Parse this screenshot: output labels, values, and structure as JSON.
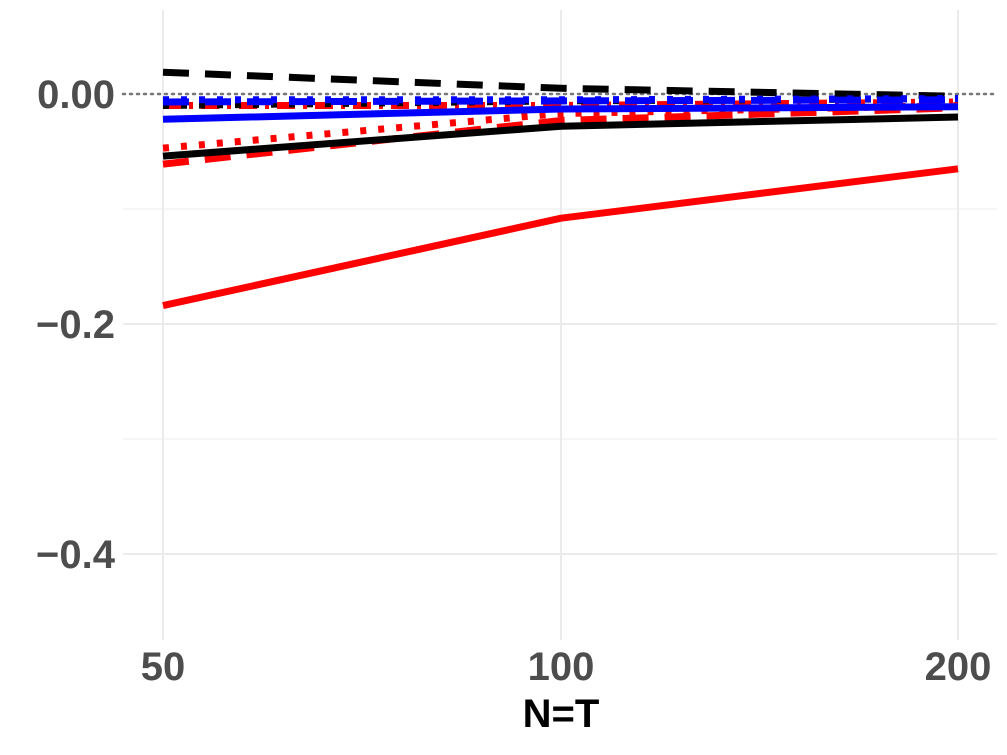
{
  "chart_data": {
    "type": "line",
    "title": "",
    "xlabel": "N=T",
    "ylabel": "",
    "x": [
      50,
      100,
      200
    ],
    "x_tick_labels": [
      "50",
      "100",
      "200"
    ],
    "y_ticks": [
      0.0,
      -0.2,
      -0.4
    ],
    "y_tick_labels": [
      "0.00",
      "−0.2",
      "−0.4"
    ],
    "xlim": [
      50,
      200
    ],
    "ylim": [
      -0.47,
      0.075
    ],
    "x_scale": "ordinal-equal-spacing",
    "grid": true,
    "reference_line": {
      "y": 0,
      "style": "dotted",
      "color": "#777777"
    },
    "series": [
      {
        "color": "#ff0000",
        "dash": "solid",
        "values": [
          -0.184,
          -0.108,
          -0.065
        ]
      },
      {
        "color": "#ff0000",
        "dash": "dashed",
        "values": [
          -0.061,
          -0.023,
          -0.012
        ]
      },
      {
        "color": "#ff0000",
        "dash": "dotted",
        "values": [
          -0.047,
          -0.017,
          -0.01
        ]
      },
      {
        "color": "#ff0000",
        "dash": "dotdash",
        "values": [
          -0.01,
          -0.01,
          -0.007
        ]
      },
      {
        "color": "#000000",
        "dash": "solid",
        "values": [
          -0.054,
          -0.028,
          -0.02
        ]
      },
      {
        "color": "#000000",
        "dash": "dashed",
        "values": [
          0.019,
          0.005,
          -0.002
        ]
      },
      {
        "color": "#000000",
        "dash": "dotted",
        "values": [
          -0.01,
          -0.006,
          -0.004
        ]
      },
      {
        "color": "#0000ff",
        "dash": "solid",
        "values": [
          -0.022,
          -0.013,
          -0.011
        ]
      },
      {
        "color": "#0000ff",
        "dash": "dashed",
        "values": [
          -0.007,
          -0.006,
          -0.005
        ]
      },
      {
        "color": "#0000ff",
        "dash": "dotted",
        "values": [
          -0.005,
          -0.005,
          -0.004
        ]
      }
    ]
  }
}
